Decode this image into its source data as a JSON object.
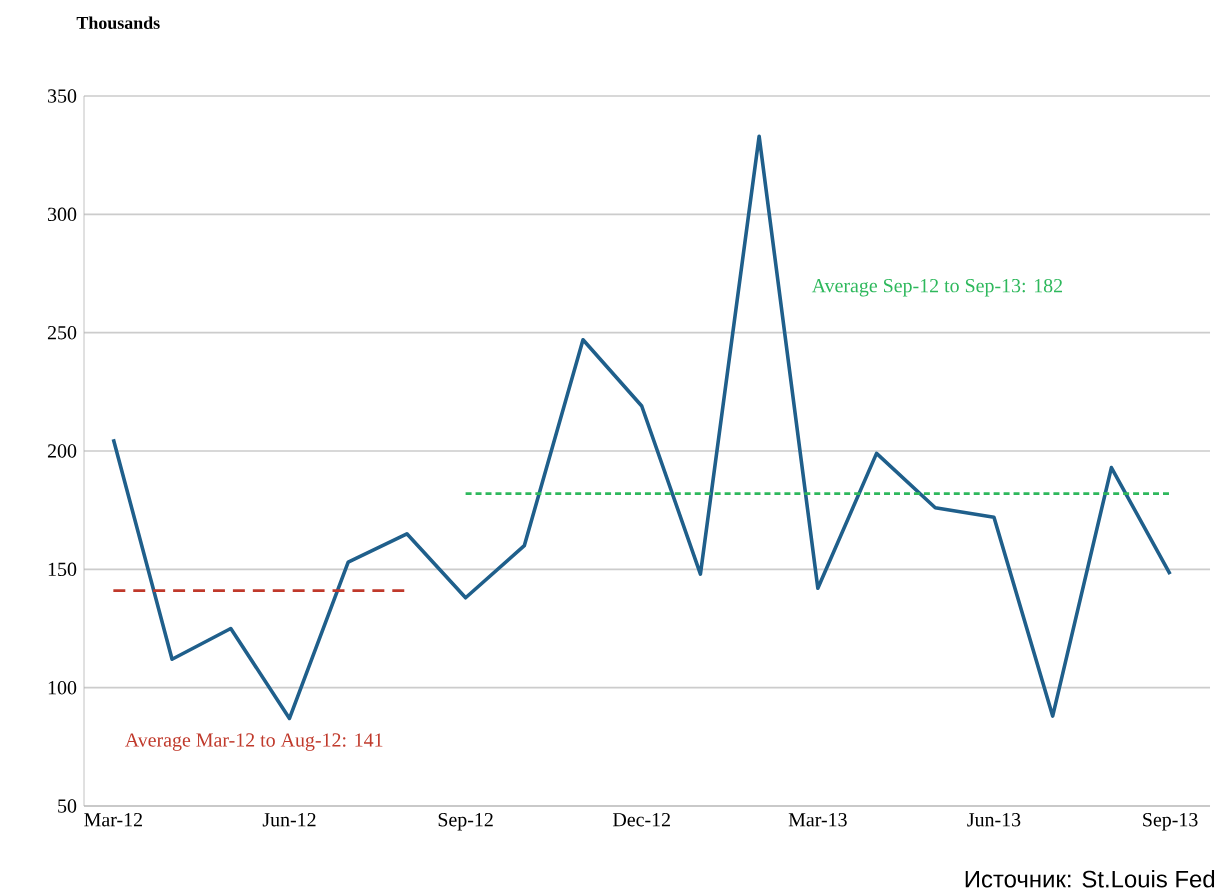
{
  "chart_data": {
    "type": "line",
    "ylabel": "Thousands",
    "categories": [
      "Mar-12",
      null,
      null,
      "Jun-12",
      null,
      null,
      "Sep-12",
      null,
      null,
      "Dec-12",
      null,
      null,
      "Mar-13",
      null,
      null,
      "Jun-13",
      null,
      null,
      "Sep-13"
    ],
    "series": [
      {
        "color": "#1f5f8b",
        "line_style": "solid",
        "values": [
          205,
          112,
          125,
          87,
          153,
          165,
          138,
          160,
          247,
          219,
          148,
          333,
          142,
          199,
          176,
          172,
          88,
          193,
          148
        ]
      },
      {
        "color": "#c0392b",
        "line_style": "dashed",
        "values": [
          141,
          141,
          141,
          141,
          141,
          141,
          null,
          null,
          null,
          null,
          null,
          null,
          null,
          null,
          null,
          null,
          null,
          null,
          null
        ]
      },
      {
        "color": "#2eb85c",
        "line_style": "dotted",
        "values": [
          null,
          null,
          null,
          null,
          null,
          null,
          182,
          182,
          182,
          182,
          182,
          182,
          182,
          182,
          182,
          182,
          182,
          182,
          182
        ]
      }
    ],
    "ylim": [
      50,
      350
    ],
    "yticks": [
      50,
      100,
      150,
      200,
      250,
      300,
      350
    ],
    "grid": "y",
    "annotations": [
      "Average Mar-12 to Aug-12: 141",
      "Average Sep-12 to Sep-13: 182",
      "Источник: St.Louis Fed"
    ]
  }
}
